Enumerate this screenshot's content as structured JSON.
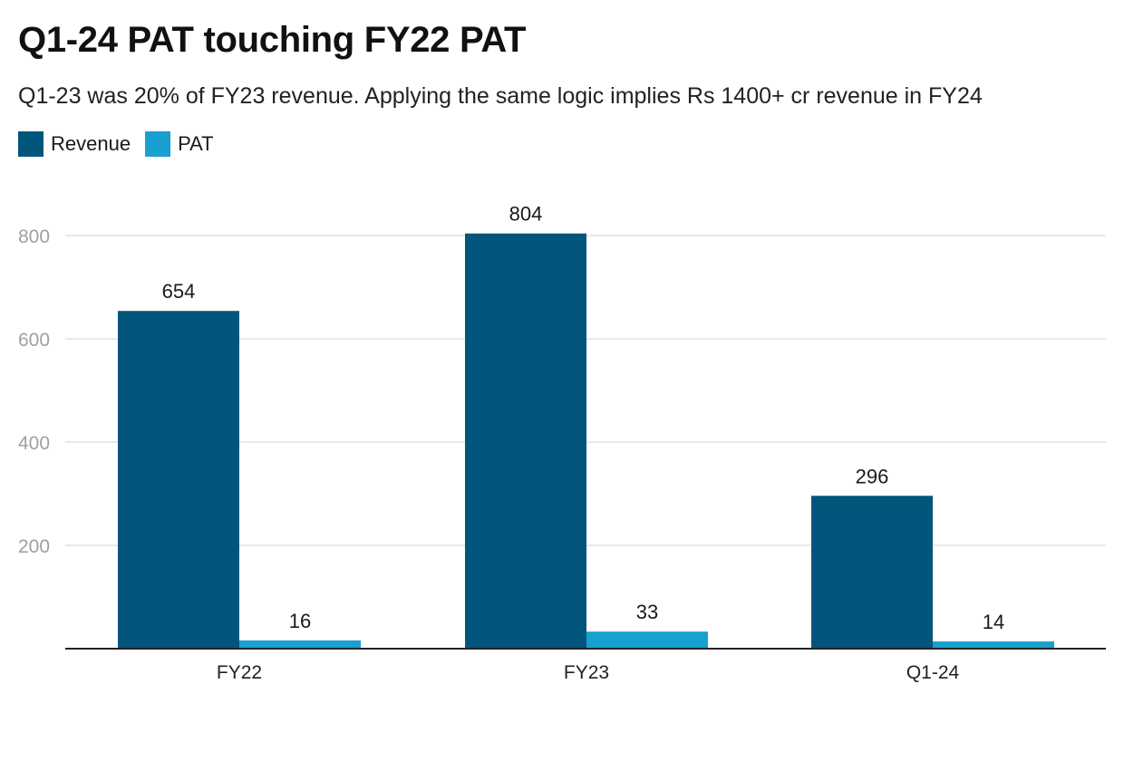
{
  "chart_data": {
    "type": "bar",
    "title": "Q1-24 PAT touching FY22 PAT",
    "subtitle": "Q1-23 was 20% of FY23 revenue. Applying the same logic implies Rs 1400+ cr revenue in FY24",
    "categories": [
      "FY22",
      "FY23",
      "Q1-24"
    ],
    "series": [
      {
        "name": "Revenue",
        "values": [
          654,
          804,
          296
        ],
        "color": "#02557b"
      },
      {
        "name": "PAT",
        "values": [
          16,
          33,
          14
        ],
        "color": "#18a0d0"
      }
    ],
    "yticks": [
      200,
      400,
      600,
      800
    ],
    "ylim": [
      0,
      800
    ],
    "xlabel": "",
    "ylabel": "",
    "grid": true,
    "legend_position": "top-left"
  }
}
